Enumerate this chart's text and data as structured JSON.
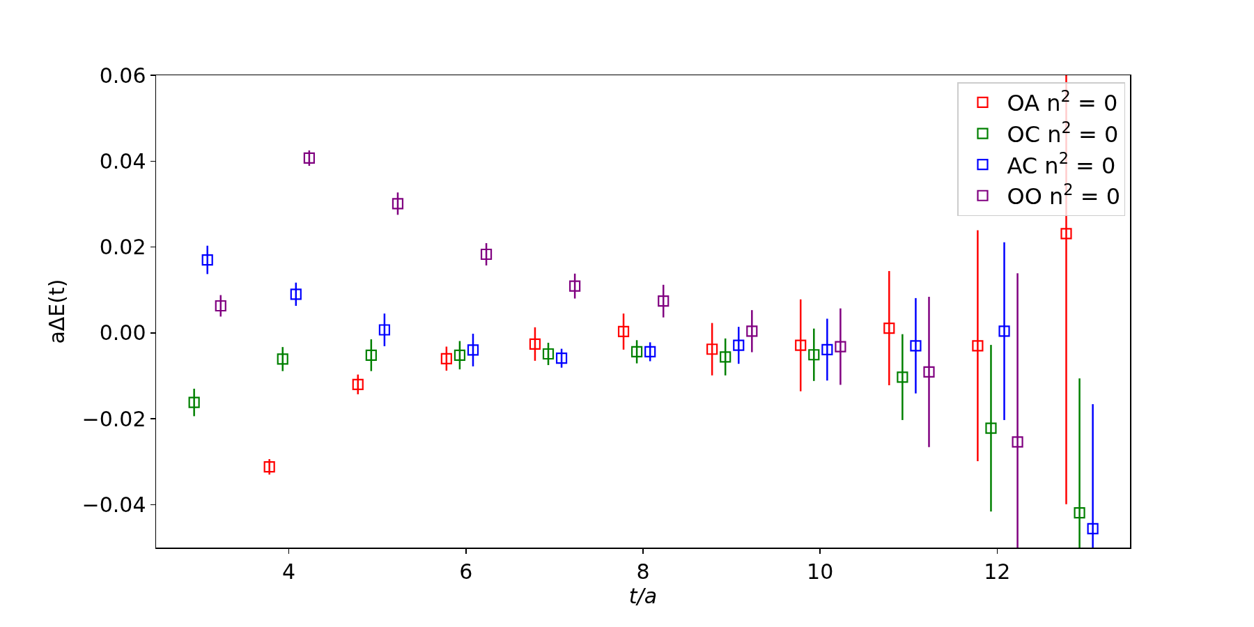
{
  "chart_data": {
    "type": "scatter",
    "xlabel": "t/a",
    "ylabel": "aΔE(t)",
    "xlim": [
      2.5,
      13.5
    ],
    "xticks": [
      4,
      6,
      8,
      10,
      12
    ],
    "ylim": [
      -0.05,
      0.06
    ],
    "yticks": [
      -0.04,
      -0.02,
      {
        "value": 0,
        "label": "0.00"
      },
      0.02,
      0.04,
      0.06
    ],
    "marker": "square",
    "legend": "top right",
    "grid": false,
    "series": [
      {
        "name": "OA n$^{2}$ = 0",
        "color": "#ff0000",
        "x": [
          3.78,
          4.78,
          5.78,
          6.78,
          7.78,
          8.78,
          9.78,
          10.78,
          11.78,
          12.78
        ],
        "values": [
          -0.0312,
          -0.012,
          -0.006,
          -0.0026,
          0.0003,
          -0.0038,
          -0.0029,
          0.0011,
          -0.003,
          0.0231
        ],
        "errors": [
          0.0018,
          0.0023,
          0.0028,
          0.0039,
          0.0042,
          0.0061,
          0.0107,
          0.0133,
          0.0269,
          [
            -0.0399,
            0.06
          ]
        ]
      },
      {
        "name": "OC n$^{2}$ = 0",
        "color": "#008000",
        "x": [
          2.93,
          3.93,
          4.93,
          5.93,
          6.93,
          7.93,
          8.93,
          9.93,
          10.93,
          11.93,
          12.93
        ],
        "values": [
          -0.0162,
          -0.0061,
          -0.0052,
          -0.0052,
          -0.0049,
          -0.0044,
          -0.0056,
          -0.0051,
          -0.0103,
          -0.0222,
          -0.0419
        ],
        "errors": [
          0.0032,
          0.0028,
          0.0037,
          0.0033,
          0.0026,
          0.0027,
          0.0043,
          0.0061,
          0.01,
          0.0194,
          [
            -0.05,
            -0.0106
          ]
        ]
      },
      {
        "name": "AC n$^{2}$ = 0",
        "color": "#0000ff",
        "x": [
          3.08,
          4.08,
          5.08,
          6.08,
          7.08,
          8.08,
          9.08,
          10.08,
          11.08,
          12.08,
          13.08
        ],
        "values": [
          0.017,
          0.009,
          0.0007,
          -0.004,
          -0.0059,
          -0.0044,
          -0.0029,
          -0.0039,
          -0.003,
          0.0004,
          -0.0456
        ],
        "errors": [
          0.0033,
          0.0027,
          0.0038,
          0.0038,
          0.0022,
          0.0022,
          0.0043,
          0.0072,
          0.0111,
          0.0207,
          [
            -0.05,
            -0.0166
          ]
        ]
      },
      {
        "name": "OO n$^{2}$ = 0",
        "color": "#800080",
        "x": [
          3.23,
          4.23,
          5.23,
          6.23,
          7.23,
          8.23,
          9.23,
          10.23,
          11.23,
          12.23
        ],
        "values": [
          0.0063,
          0.0407,
          0.0301,
          0.0183,
          0.0109,
          0.0074,
          0.0004,
          -0.0032,
          -0.0091,
          -0.0254
        ],
        "errors": [
          0.0025,
          0.0018,
          0.0026,
          0.0026,
          0.0029,
          0.0038,
          0.0049,
          0.0089,
          0.0175,
          [
            -0.05,
            0.0139
          ]
        ]
      }
    ]
  }
}
